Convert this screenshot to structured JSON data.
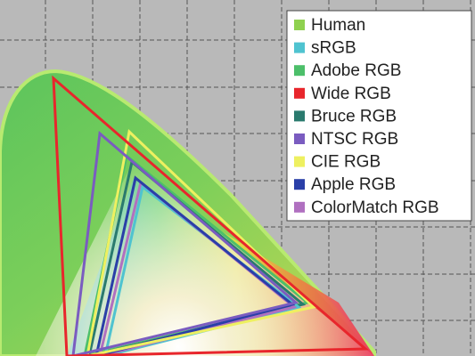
{
  "legend": {
    "items": [
      {
        "label": "Human",
        "color": "#8fd14f"
      },
      {
        "label": "sRGB",
        "color": "#4fc3d0"
      },
      {
        "label": "Adobe RGB",
        "color": "#4cbf6a"
      },
      {
        "label": "Wide RGB",
        "color": "#e8262c"
      },
      {
        "label": "Bruce RGB",
        "color": "#2a7a6e"
      },
      {
        "label": "NTSC RGB",
        "color": "#7a5cc0"
      },
      {
        "label": "CIE RGB",
        "color": "#eef060"
      },
      {
        "label": "Apple RGB",
        "color": "#2a3fa8"
      },
      {
        "label": "ColorMatch RGB",
        "color": "#b070c0"
      }
    ]
  }
}
